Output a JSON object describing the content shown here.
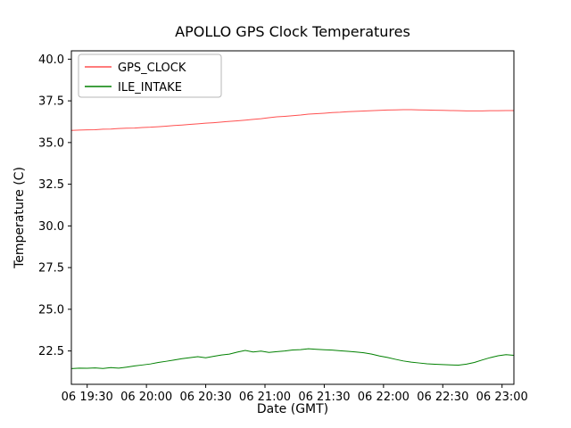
{
  "chart_data": {
    "type": "line",
    "title": "APOLLO GPS Clock Temperatures",
    "xlabel": "Date (GMT)",
    "ylabel": "Temperature (C)",
    "grid": false,
    "legend_position": "upper left",
    "xlim": [
      1162,
      1386
    ],
    "ylim": [
      20.5,
      40.5
    ],
    "x_ticks": [
      {
        "value": 1170,
        "label": "06 19:30"
      },
      {
        "value": 1200,
        "label": "06 20:00"
      },
      {
        "value": 1230,
        "label": "06 20:30"
      },
      {
        "value": 1260,
        "label": "06 21:00"
      },
      {
        "value": 1290,
        "label": "06 21:30"
      },
      {
        "value": 1320,
        "label": "06 22:00"
      },
      {
        "value": 1350,
        "label": "06 22:30"
      },
      {
        "value": 1380,
        "label": "06 23:00"
      }
    ],
    "y_ticks": [
      {
        "value": 22.5,
        "label": "22.5"
      },
      {
        "value": 25.0,
        "label": "25.0"
      },
      {
        "value": 27.5,
        "label": "27.5"
      },
      {
        "value": 30.0,
        "label": "30.0"
      },
      {
        "value": 32.5,
        "label": "32.5"
      },
      {
        "value": 35.0,
        "label": "35.0"
      },
      {
        "value": 37.5,
        "label": "37.5"
      },
      {
        "value": 40.0,
        "label": "40.0"
      }
    ],
    "x": [
      1162,
      1166,
      1170,
      1174,
      1178,
      1182,
      1186,
      1190,
      1194,
      1198,
      1202,
      1206,
      1210,
      1214,
      1218,
      1222,
      1226,
      1230,
      1234,
      1238,
      1242,
      1246,
      1250,
      1254,
      1258,
      1262,
      1266,
      1270,
      1274,
      1278,
      1282,
      1286,
      1290,
      1294,
      1298,
      1302,
      1306,
      1310,
      1314,
      1318,
      1322,
      1326,
      1330,
      1334,
      1338,
      1342,
      1346,
      1350,
      1354,
      1358,
      1362,
      1366,
      1370,
      1374,
      1378,
      1382,
      1386
    ],
    "series": [
      {
        "name": "GPS_CLOCK",
        "color": "#ff5050",
        "values": [
          35.73,
          35.75,
          35.76,
          35.77,
          35.8,
          35.81,
          35.84,
          35.86,
          35.87,
          35.9,
          35.92,
          35.95,
          35.98,
          36.02,
          36.05,
          36.09,
          36.12,
          36.16,
          36.19,
          36.23,
          36.27,
          36.3,
          36.34,
          36.39,
          36.43,
          36.49,
          36.54,
          36.57,
          36.61,
          36.65,
          36.7,
          36.73,
          36.76,
          36.8,
          36.82,
          36.85,
          36.87,
          36.89,
          36.91,
          36.93,
          36.95,
          36.96,
          36.97,
          36.97,
          36.96,
          36.95,
          36.94,
          36.93,
          36.92,
          36.91,
          36.9,
          36.9,
          36.9,
          36.91,
          36.91,
          36.92,
          36.92
        ]
      },
      {
        "name": "ILE_INTAKE",
        "color": "#008000",
        "values": [
          21.44,
          21.47,
          21.46,
          21.48,
          21.45,
          21.5,
          21.47,
          21.53,
          21.6,
          21.66,
          21.72,
          21.81,
          21.88,
          21.96,
          22.04,
          22.1,
          22.16,
          22.09,
          22.18,
          22.26,
          22.31,
          22.43,
          22.53,
          22.44,
          22.49,
          22.41,
          22.46,
          22.5,
          22.56,
          22.58,
          22.63,
          22.6,
          22.57,
          22.55,
          22.51,
          22.48,
          22.44,
          22.39,
          22.31,
          22.2,
          22.11,
          22.0,
          21.9,
          21.83,
          21.78,
          21.73,
          21.7,
          21.68,
          21.66,
          21.65,
          21.71,
          21.81,
          21.96,
          22.1,
          22.21,
          22.28,
          22.24
        ]
      }
    ]
  }
}
